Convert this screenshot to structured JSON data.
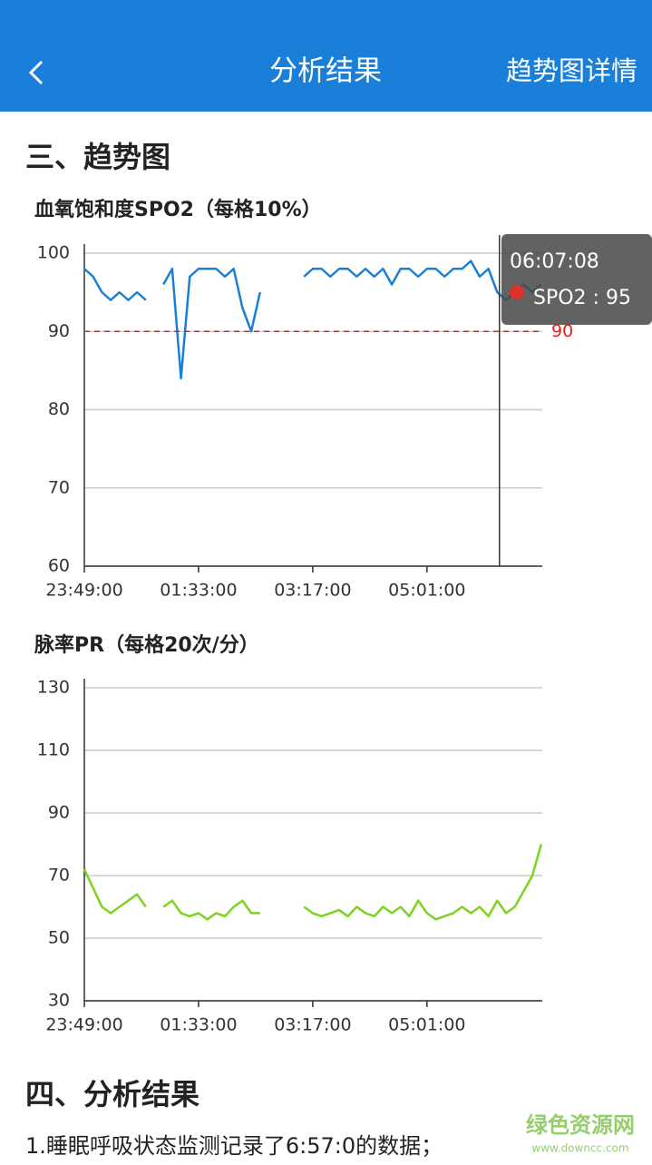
{
  "header": {
    "title": "分析结果",
    "action": "趋势图详情"
  },
  "sections": [
    {
      "title": "三、趋势图"
    },
    {
      "title": "四、分析结果",
      "text": "1.睡眠呼吸状态监测记录了6:57:0的数据；"
    }
  ],
  "watermark": {
    "name": "绿色资源网",
    "url": "www.downcc.com"
  },
  "chart_data": [
    {
      "type": "line",
      "title": "血氧饱和度SPO2（每格10%）",
      "x": [
        0,
        8,
        16,
        24,
        32,
        40,
        48,
        56,
        64,
        72,
        80,
        88,
        96,
        104,
        112,
        120,
        128,
        136,
        144,
        152,
        160,
        168,
        176,
        184,
        192,
        200,
        208,
        216,
        224,
        232,
        240,
        248,
        256,
        264,
        272,
        280,
        288,
        296,
        304,
        312,
        320,
        328,
        336,
        344,
        352,
        360,
        368,
        376,
        384,
        392,
        400,
        408,
        416
      ],
      "series": [
        {
          "name": "SPO2",
          "color": "#1a80d6",
          "values": [
            98,
            97,
            95,
            94,
            95,
            94,
            95,
            94,
            null,
            96,
            98,
            84,
            97,
            98,
            98,
            98,
            97,
            98,
            93,
            90,
            95,
            null,
            null,
            null,
            null,
            97,
            98,
            98,
            97,
            98,
            98,
            97,
            98,
            97,
            98,
            96,
            98,
            98,
            97,
            98,
            98,
            97,
            98,
            98,
            99,
            97,
            98,
            95,
            94,
            95,
            96,
            95,
            96
          ]
        }
      ],
      "xlim": [
        0,
        417
      ],
      "xticks": [
        {
          "value": 0,
          "label": "23:49:00"
        },
        {
          "value": 104,
          "label": "01:33:00"
        },
        {
          "value": 208,
          "label": "03:17:00"
        },
        {
          "value": 312,
          "label": "05:01:00"
        }
      ],
      "ylim": [
        60,
        100
      ],
      "yticks": [
        60,
        70,
        80,
        90,
        100
      ],
      "grid": true,
      "reference_line": {
        "value": 90,
        "color": "#e02020"
      },
      "tooltip": {
        "time": "06:07:08",
        "label": "SPO2 : 95",
        "x": 378,
        "value": 95
      }
    },
    {
      "type": "line",
      "title": "脉率PR（每格20次/分）",
      "x": [
        0,
        8,
        16,
        24,
        32,
        40,
        48,
        56,
        64,
        72,
        80,
        88,
        96,
        104,
        112,
        120,
        128,
        136,
        144,
        152,
        160,
        168,
        176,
        184,
        192,
        200,
        208,
        216,
        224,
        232,
        240,
        248,
        256,
        264,
        272,
        280,
        288,
        296,
        304,
        312,
        320,
        328,
        336,
        344,
        352,
        360,
        368,
        376,
        384,
        392,
        400,
        408,
        416
      ],
      "series": [
        {
          "name": "PR",
          "color": "#7ed321",
          "values": [
            72,
            66,
            60,
            58,
            60,
            62,
            64,
            60,
            null,
            60,
            62,
            58,
            57,
            58,
            56,
            58,
            57,
            60,
            62,
            58,
            58,
            null,
            null,
            null,
            null,
            60,
            58,
            57,
            58,
            59,
            57,
            60,
            58,
            57,
            60,
            58,
            60,
            57,
            62,
            58,
            56,
            57,
            58,
            60,
            58,
            60,
            57,
            62,
            58,
            60,
            65,
            70,
            80
          ]
        }
      ],
      "xlim": [
        0,
        417
      ],
      "xticks": [
        {
          "value": 0,
          "label": "23:49:00"
        },
        {
          "value": 104,
          "label": "01:33:00"
        },
        {
          "value": 208,
          "label": "03:17:00"
        },
        {
          "value": 312,
          "label": "05:01:00"
        }
      ],
      "ylim": [
        30,
        130
      ],
      "yticks": [
        30,
        50,
        70,
        90,
        110,
        130
      ],
      "grid": true
    }
  ]
}
